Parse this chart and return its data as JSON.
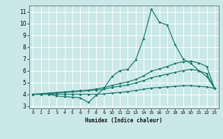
{
  "xlabel": "Humidex (Indice chaleur)",
  "bg_color": "#cbe8e8",
  "grid_color": "#ffffff",
  "line_color": "#1a7a6e",
  "xlim": [
    -0.5,
    23.5
  ],
  "ylim": [
    2.8,
    11.5
  ],
  "xticks": [
    0,
    1,
    2,
    3,
    4,
    5,
    6,
    7,
    8,
    9,
    10,
    11,
    12,
    13,
    14,
    15,
    16,
    17,
    18,
    19,
    20,
    21,
    22,
    23
  ],
  "yticks": [
    3,
    4,
    5,
    6,
    7,
    8,
    9,
    10,
    11
  ],
  "line1_x": [
    0,
    1,
    2,
    3,
    4,
    5,
    6,
    7,
    8,
    9,
    10,
    11,
    12,
    13,
    14,
    15,
    16,
    17,
    18,
    19,
    20,
    21,
    22,
    23
  ],
  "line1_y": [
    4.0,
    4.0,
    4.0,
    3.85,
    3.8,
    3.75,
    3.7,
    3.3,
    3.9,
    4.5,
    5.5,
    6.0,
    6.1,
    6.9,
    8.7,
    11.2,
    10.1,
    9.85,
    8.2,
    7.0,
    6.6,
    6.0,
    5.5,
    4.5
  ],
  "line2_x": [
    0,
    1,
    2,
    3,
    4,
    5,
    6,
    7,
    8,
    9,
    10,
    11,
    12,
    13,
    14,
    15,
    16,
    17,
    18,
    19,
    20,
    21,
    22,
    23
  ],
  "line2_y": [
    4.0,
    4.05,
    4.1,
    4.15,
    4.2,
    4.25,
    4.3,
    4.35,
    4.45,
    4.55,
    4.75,
    4.9,
    5.05,
    5.25,
    5.55,
    5.95,
    6.15,
    6.35,
    6.6,
    6.75,
    6.8,
    6.65,
    6.35,
    4.5
  ],
  "line3_x": [
    0,
    1,
    2,
    3,
    4,
    5,
    6,
    7,
    8,
    9,
    10,
    11,
    12,
    13,
    14,
    15,
    16,
    17,
    18,
    19,
    20,
    21,
    22,
    23
  ],
  "line3_y": [
    4.0,
    4.0,
    4.05,
    4.1,
    4.15,
    4.2,
    4.25,
    4.3,
    4.35,
    4.42,
    4.58,
    4.68,
    4.78,
    4.95,
    5.15,
    5.4,
    5.55,
    5.7,
    5.85,
    6.0,
    6.1,
    6.0,
    5.75,
    4.5
  ],
  "line4_x": [
    0,
    1,
    2,
    3,
    4,
    5,
    6,
    7,
    8,
    9,
    10,
    11,
    12,
    13,
    14,
    15,
    16,
    17,
    18,
    19,
    20,
    21,
    22,
    23
  ],
  "line4_y": [
    4.0,
    4.0,
    4.0,
    4.0,
    4.0,
    4.0,
    4.0,
    4.0,
    4.0,
    4.02,
    4.1,
    4.15,
    4.22,
    4.32,
    4.42,
    4.52,
    4.57,
    4.62,
    4.67,
    4.72,
    4.72,
    4.67,
    4.62,
    4.5
  ]
}
